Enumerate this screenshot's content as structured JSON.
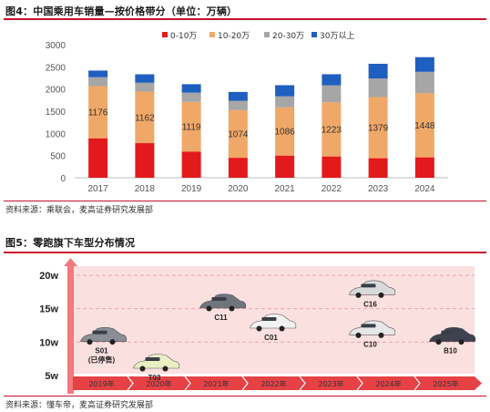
{
  "figure4": {
    "title": "图4：中国乘用车销量—按价格带分（单位：万辆）",
    "source": "资料来源：乘联会，麦高证券研究发展部"
  },
  "figure5": {
    "title": "图5：零跑旗下车型分布情况",
    "source": "资料来源：懂车帝，麦高证券研究发展部"
  },
  "chart_data": [
    {
      "type": "bar",
      "stacked": true,
      "categories": [
        "2017",
        "2018",
        "2019",
        "2020",
        "2021",
        "2022",
        "2023",
        "2024"
      ],
      "ylim": [
        0,
        3000
      ],
      "yticks": [
        0,
        500,
        1000,
        1500,
        2000,
        2500,
        3000
      ],
      "grid": false,
      "legend": "top",
      "series": [
        {
          "name": "0-10万",
          "color": "#e31a1c",
          "values": [
            890,
            780,
            590,
            450,
            500,
            480,
            440,
            460
          ]
        },
        {
          "name": "10-20万",
          "color": "#f0a868",
          "values": [
            1176,
            1162,
            1119,
            1074,
            1086,
            1223,
            1379,
            1448
          ]
        },
        {
          "name": "20-30万",
          "color": "#a6a6a6",
          "values": [
            200,
            200,
            210,
            210,
            250,
            380,
            420,
            480
          ]
        },
        {
          "name": "30万以上",
          "color": "#1f5fbf",
          "values": [
            150,
            190,
            190,
            200,
            250,
            250,
            330,
            330
          ]
        }
      ],
      "data_labels": {
        "series": "10-20万"
      }
    },
    {
      "type": "scatter",
      "title": "",
      "yticks": [
        "5w",
        "10w",
        "15w",
        "20w"
      ],
      "ylim": [
        5,
        20
      ],
      "x_categories": [
        "2019年",
        "2020年",
        "2021年",
        "2022年",
        "2023年",
        "2024年",
        "2025年"
      ],
      "points": [
        {
          "label": "S01",
          "sublabel": "(已停售)",
          "year": "2019年",
          "price_w": 10.5
        },
        {
          "label": "T03",
          "sublabel": "",
          "year": "2020年",
          "price_w": 6.5
        },
        {
          "label": "C11",
          "sublabel": "",
          "year": "2021年",
          "price_w": 15.5
        },
        {
          "label": "C01",
          "sublabel": "",
          "year": "2022年",
          "price_w": 12.5
        },
        {
          "label": "C16",
          "sublabel": "",
          "year": "2024年",
          "price_w": 17.5
        },
        {
          "label": "C10",
          "sublabel": "",
          "year": "2024年",
          "price_w": 11.5
        },
        {
          "label": "B10",
          "sublabel": "",
          "year": "2025年",
          "price_w": 10.5
        }
      ],
      "colors": {
        "band": "#fbe0e0",
        "axis": "#f4787c",
        "timeline": "#e64145"
      }
    }
  ]
}
